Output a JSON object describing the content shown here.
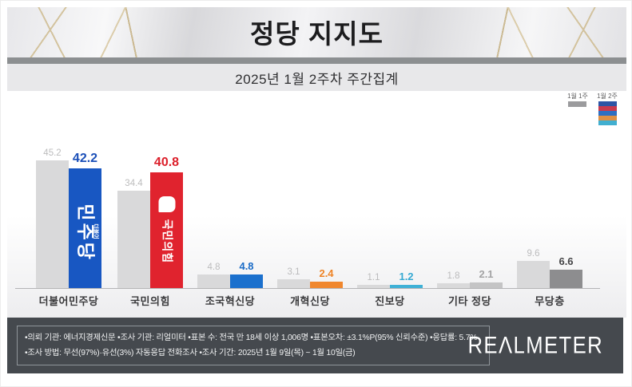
{
  "header": {
    "title": "정당 지지도",
    "subtitle": "2025년 1월 2주차 주간집계"
  },
  "legend": {
    "prev_label": "1월 1주",
    "curr_label": "1월 2주",
    "prev_color": "#9b9b9d",
    "curr_colors": [
      "#2e55a5",
      "#c93a4e",
      "#2d6fc2",
      "#de9045",
      "#41afd0"
    ]
  },
  "chart_data": {
    "type": "bar",
    "title": "정당 지지도",
    "subtitle": "2025년 1월 2주차 주간집계",
    "categories": [
      "더불어민주당",
      "국민의힘",
      "조국혁신당",
      "개혁신당",
      "진보당",
      "기타 정당",
      "무당층"
    ],
    "series": [
      {
        "name": "1월 1주",
        "values": [
          45.2,
          34.4,
          4.8,
          3.1,
          1.1,
          1.8,
          9.6
        ]
      },
      {
        "name": "1월 2주",
        "values": [
          42.2,
          40.8,
          4.8,
          2.4,
          1.2,
          2.1,
          6.6
        ]
      }
    ],
    "prev_bar_color": "#d9d9da",
    "prev_value_label_color": "#bcbcbd",
    "curr_bar_colors": [
      "#1857c2",
      "#e0232e",
      "#1b70cd",
      "#f0872e",
      "#3fb1d6",
      "#c4c4c5",
      "#8d8d8f"
    ],
    "curr_value_label_colors": [
      "#1b4fb8",
      "#dc1f2a",
      "#1b6cc7",
      "#ee8325",
      "#36a9d2",
      "#a3a3a4",
      "#454547"
    ],
    "emphasis": [
      true,
      true,
      false,
      false,
      false,
      false,
      false
    ],
    "ylim": [
      0,
      50
    ],
    "grid": false,
    "legend_position": "top-right",
    "bar_logos": {
      "0": {
        "type": "text",
        "main": "민주당",
        "small": "더불어"
      },
      "1": {
        "type": "symbol-text",
        "main": "국민의힘",
        "symbol": "rounded-square-symbol"
      }
    }
  },
  "footer": {
    "line1": "•의뢰 기관: 에너지경제신문  •조사 기관: 리얼미터 •표본 수: 전국 만 18세 이상 1,006명 •표본오차: ±3.1%P(95% 신뢰수준) •응답률: 5.7%",
    "line2": "•조사 방법: 무선(97%)·유선(3%) 자동응답 전화조사 •조사 기간: 2025년 1월 9일(목) ~ 1월 10일(금)",
    "logo_text": "REΛLMETER"
  }
}
